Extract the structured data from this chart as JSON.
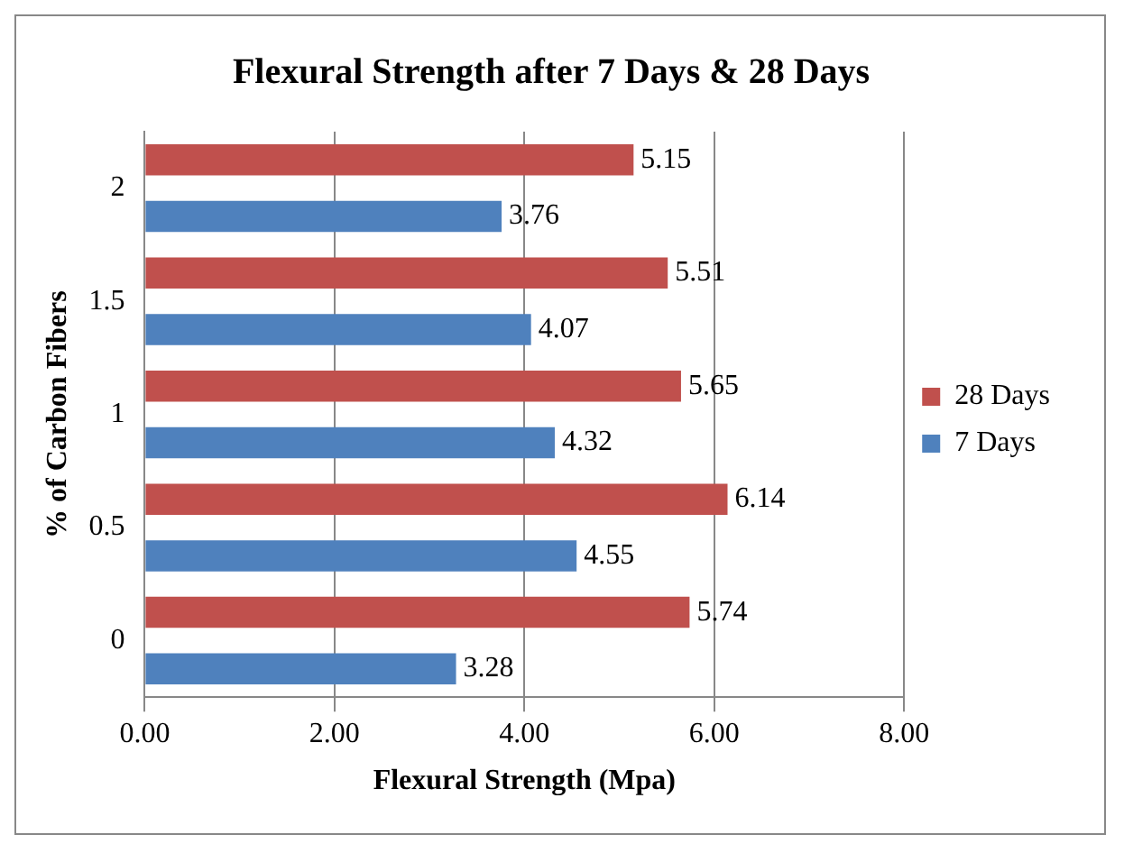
{
  "chart_data": {
    "type": "bar",
    "orientation": "horizontal",
    "title": "Flexural Strength after 7 Days & 28 Days",
    "xlabel": "Flexural Strength (Mpa)",
    "ylabel": "% of Carbon Fibers",
    "categories": [
      "2",
      "1.5",
      "1",
      "0.5",
      "0"
    ],
    "series": [
      {
        "name": "28 Days",
        "color": "#c0504d",
        "values": [
          5.15,
          5.51,
          5.65,
          6.14,
          5.74
        ]
      },
      {
        "name": "7 Days",
        "color": "#4f81bd",
        "values": [
          3.76,
          4.07,
          4.32,
          4.55,
          3.28
        ]
      }
    ],
    "xlim": [
      0,
      8
    ],
    "xticks": [
      {
        "value": 0,
        "label": "0.00"
      },
      {
        "value": 2,
        "label": "2.00"
      },
      {
        "value": 4,
        "label": "4.00"
      },
      {
        "value": 6,
        "label": "6.00"
      },
      {
        "value": 8,
        "label": "8.00"
      }
    ],
    "grid": "x",
    "legend": "right",
    "data_labels": true
  }
}
